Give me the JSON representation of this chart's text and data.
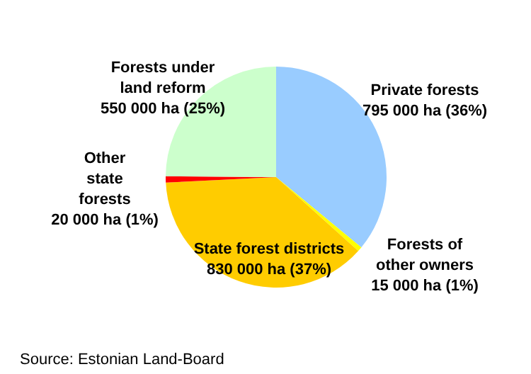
{
  "chart_data": {
    "type": "pie",
    "categories": [
      "Private forests",
      "Forests of other owners",
      "State forest districts",
      "Other state forests",
      "Forests under land reform"
    ],
    "values": [
      795000,
      15000,
      830000,
      20000,
      550000
    ],
    "value_labels": [
      "795 000 ha (36%)",
      "15 000 ha (1%)",
      "830 000 ha (37%)",
      "20 000 ha (1%)",
      "550 000 ha (25%)"
    ],
    "colors": [
      "#99ccff",
      "#ffff00",
      "#ffcc00",
      "#ff0000",
      "#ccffcc"
    ],
    "legend": false,
    "annotations": [
      "Source: Estonian Land-Board"
    ]
  }
}
